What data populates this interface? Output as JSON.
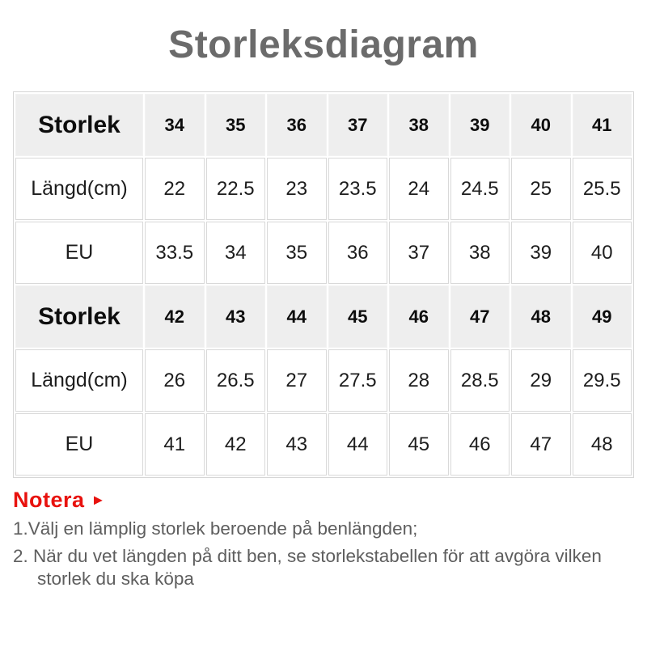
{
  "title": "Storleksdiagram",
  "chart_data": {
    "type": "table",
    "title": "Storleksdiagram",
    "rows": [
      {
        "label": "Storlek",
        "header": true,
        "values": [
          "34",
          "35",
          "36",
          "37",
          "38",
          "39",
          "40",
          "41"
        ]
      },
      {
        "label": "Längd(cm)",
        "header": false,
        "values": [
          "22",
          "22.5",
          "23",
          "23.5",
          "24",
          "24.5",
          "25",
          "25.5"
        ]
      },
      {
        "label": "EU",
        "header": false,
        "values": [
          "33.5",
          "34",
          "35",
          "36",
          "37",
          "38",
          "39",
          "40"
        ]
      },
      {
        "label": "Storlek",
        "header": true,
        "values": [
          "42",
          "43",
          "44",
          "45",
          "46",
          "47",
          "48",
          "49"
        ]
      },
      {
        "label": "Längd(cm)",
        "header": false,
        "values": [
          "26",
          "26.5",
          "27",
          "27.5",
          "28",
          "28.5",
          "29",
          "29.5"
        ]
      },
      {
        "label": "EU",
        "header": false,
        "values": [
          "41",
          "42",
          "43",
          "44",
          "45",
          "46",
          "47",
          "48"
        ]
      }
    ]
  },
  "notes": {
    "heading": "Notera",
    "arrow_icon": "►",
    "items": [
      "1.Välj en lämplig storlek beroende på benlängden;",
      "2. När du vet längden på ditt ben, se storlekstabellen för att avgöra vilken storlek du ska köpa"
    ]
  },
  "colors": {
    "accent_red": "#e8120e",
    "title_gray": "#6b6b6b",
    "header_row_bg": "#eeeeee",
    "grid_line": "#d9d9d9"
  }
}
